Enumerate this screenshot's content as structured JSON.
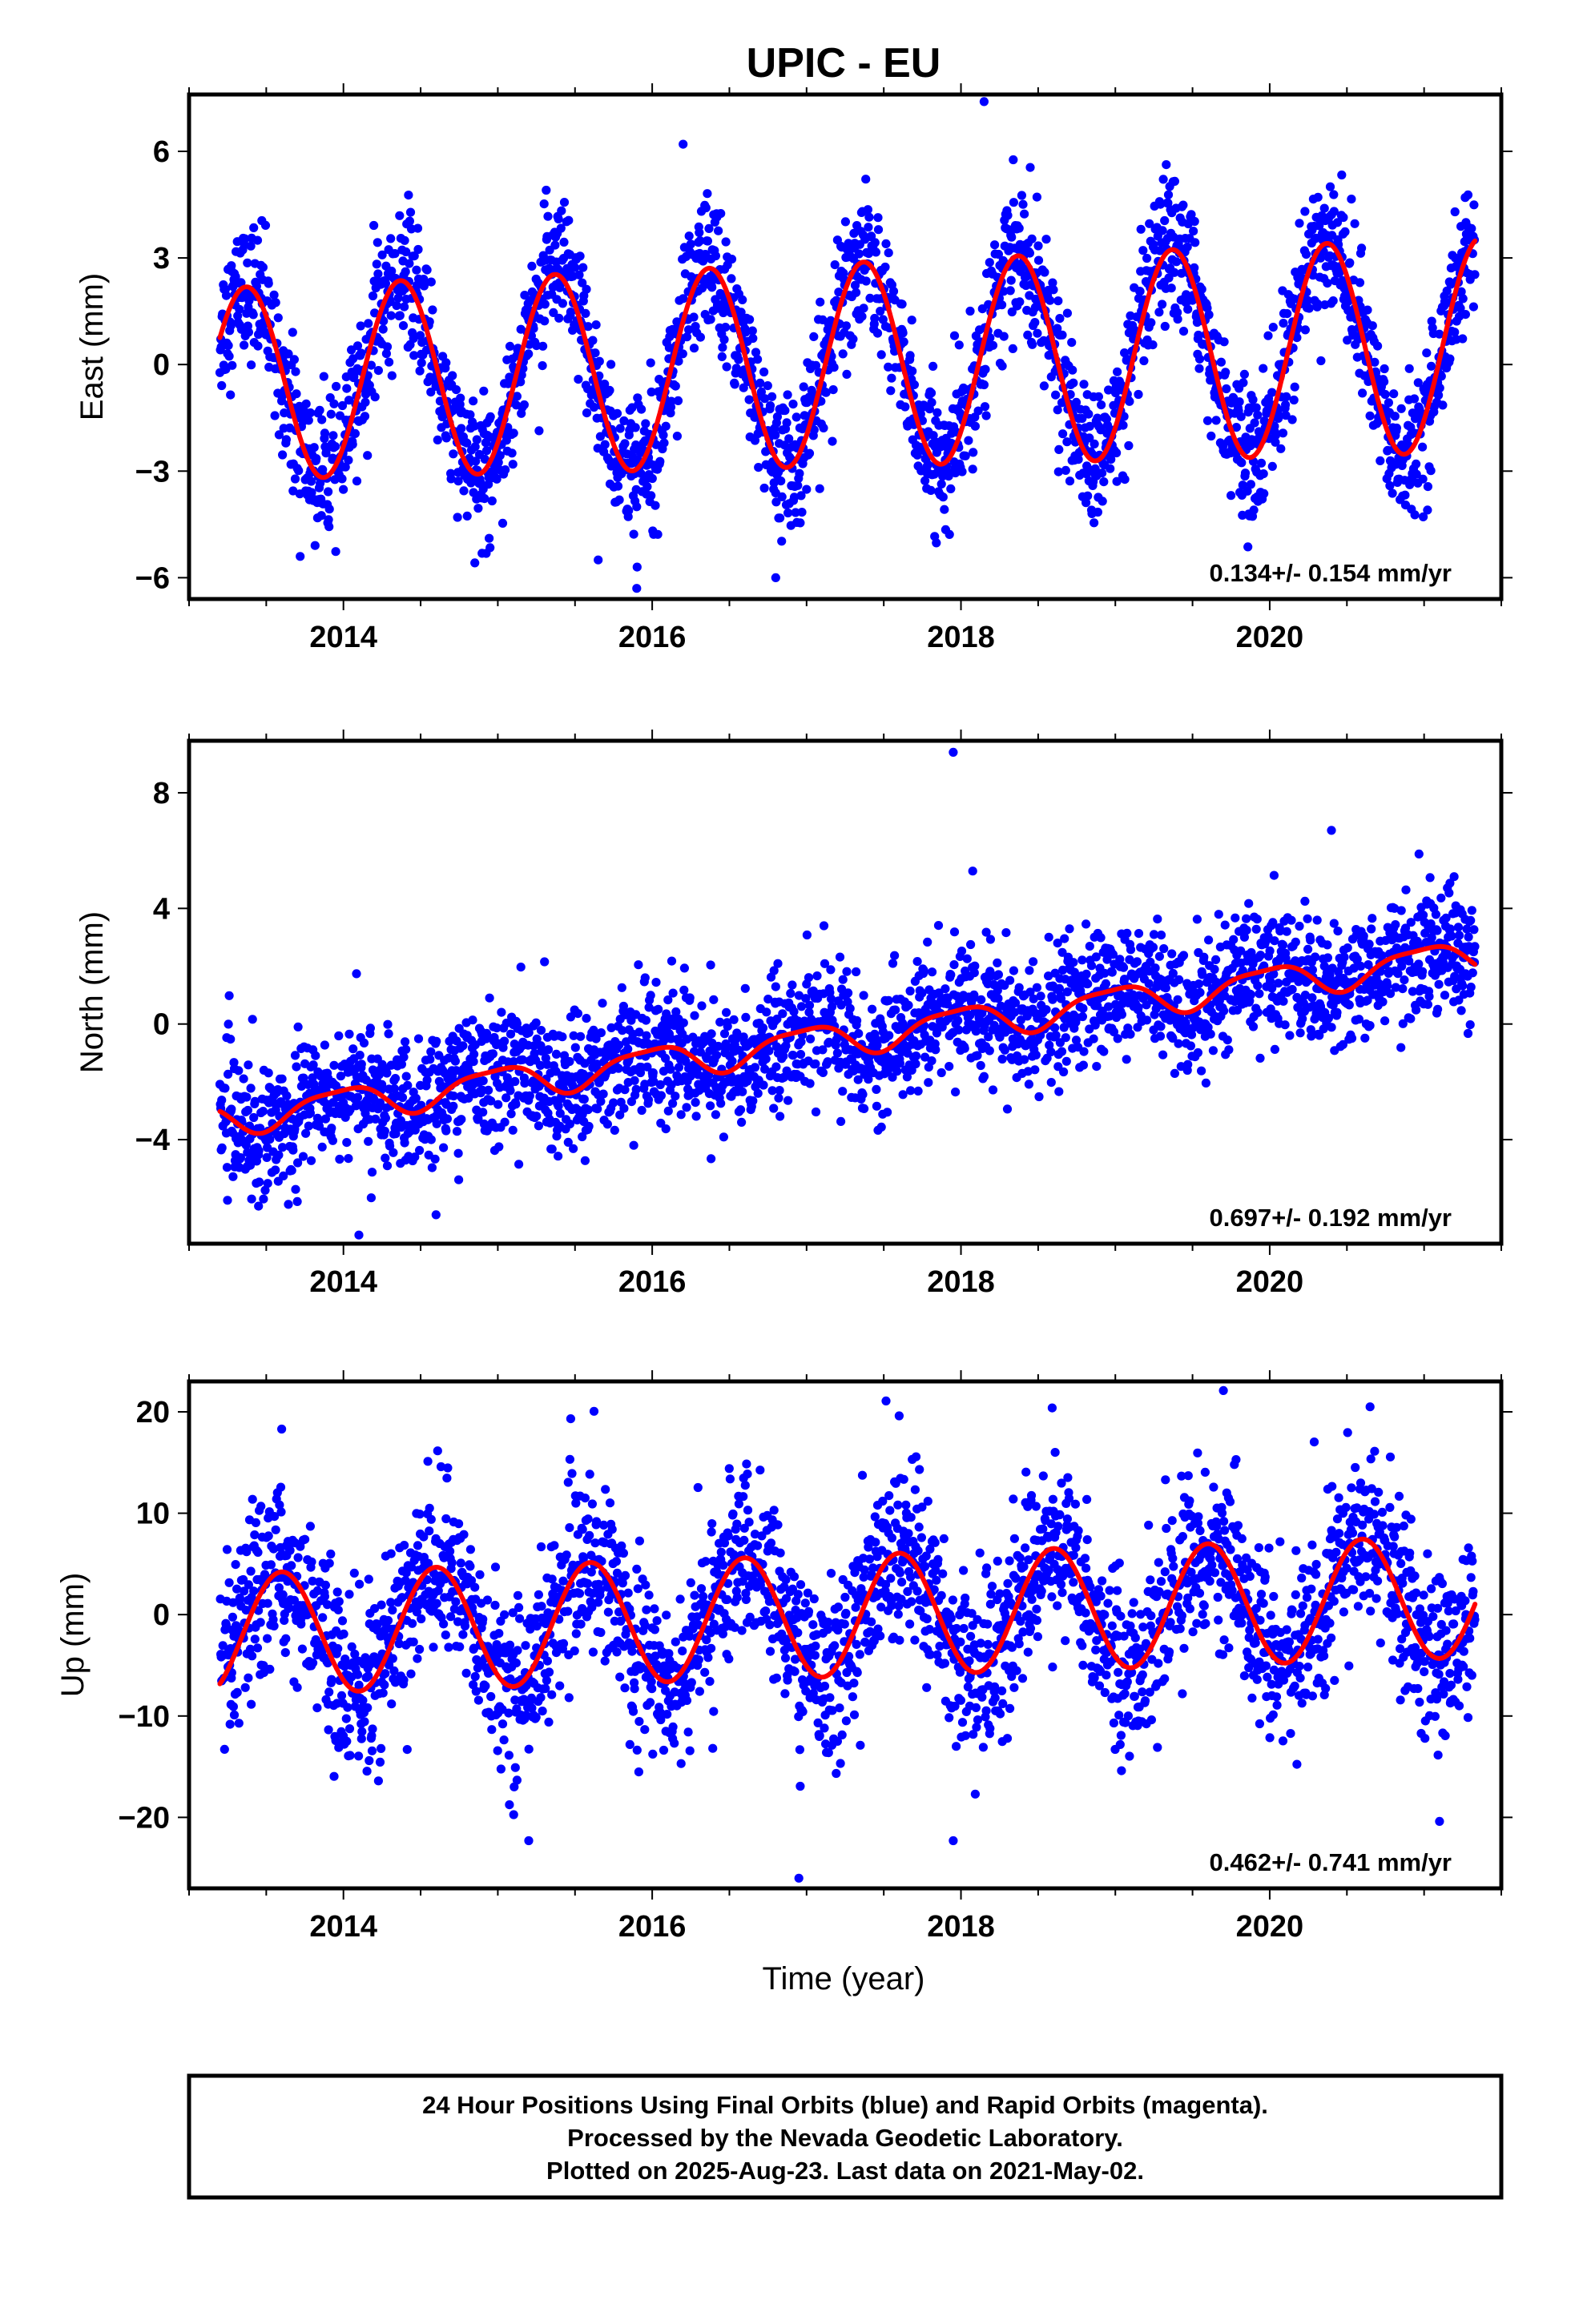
{
  "title": "UPIC - EU",
  "x_label": "Time (year)",
  "footer": {
    "lines": [
      "24 Hour Positions Using Final Orbits (blue) and Rapid Orbits (magenta).",
      "Processed by the Nevada Geodetic Laboratory.",
      "Plotted on 2025-Aug-23. Last data on 2021-May-02."
    ]
  },
  "colors": {
    "points": "#0000ff",
    "fit": "#ff0000",
    "frame": "#000000"
  },
  "chart_data": [
    {
      "type": "scatter",
      "component": "east",
      "ylabel": "East (mm)",
      "xlim": [
        2013.0,
        2021.5
      ],
      "ylim": [
        -6.6,
        7.6
      ],
      "xticks": [
        2014,
        2016,
        2018,
        2020
      ],
      "xtick_labels": [
        "2014",
        "2016",
        "2018",
        "2020"
      ],
      "yticks": [
        -6,
        -3,
        0,
        3,
        6
      ],
      "ytick_labels": [
        "−6",
        "−3",
        "0",
        "3",
        "6"
      ],
      "rate_text": "0.134+/- 0.154 mm/yr",
      "data_range": [
        2013.2,
        2021.33
      ],
      "fit_model": {
        "offset": 0.0,
        "rate": 0.134,
        "annual_amp": 2.7,
        "annual_peak": 0.37,
        "semiannual_amp": 0.0,
        "semiannual_peak": 0.0,
        "amp_growth": 0.12
      },
      "scatter_std": 0.95,
      "outliers": [
        [
          2013.72,
          -5.4
        ],
        [
          2015.65,
          -5.5
        ],
        [
          2015.9,
          -6.3
        ],
        [
          2016.2,
          6.2
        ],
        [
          2016.8,
          -6.0
        ],
        [
          2018.15,
          7.4
        ]
      ]
    },
    {
      "type": "scatter",
      "component": "north",
      "ylabel": "North (mm)",
      "xlim": [
        2013.0,
        2021.5
      ],
      "ylim": [
        -7.6,
        9.8
      ],
      "xticks": [
        2014,
        2016,
        2018,
        2020
      ],
      "xtick_labels": [
        "2014",
        "2016",
        "2018",
        "2020"
      ],
      "yticks": [
        -4,
        0,
        4,
        8
      ],
      "ytick_labels": [
        "−4",
        "0",
        "4",
        "8"
      ],
      "rate_text": "0.697+/- 0.192 mm/yr",
      "data_range": [
        2013.2,
        2021.33
      ],
      "fit_model": {
        "offset": -0.45,
        "rate": 0.697,
        "annual_amp": 0.55,
        "annual_peak": 0.98,
        "semiannual_amp": 0.15,
        "semiannual_peak": 0.2,
        "amp_growth": 0.0
      },
      "scatter_std": 1.1,
      "outliers": [
        [
          2013.45,
          -6.3
        ],
        [
          2014.1,
          -7.3
        ],
        [
          2014.6,
          -6.6
        ],
        [
          2017.95,
          9.4
        ],
        [
          2020.4,
          6.7
        ]
      ]
    },
    {
      "type": "scatter",
      "component": "up",
      "ylabel": "Up (mm)",
      "xlim": [
        2013.0,
        2021.5
      ],
      "ylim": [
        -27,
        23
      ],
      "xticks": [
        2014,
        2016,
        2018,
        2020
      ],
      "xtick_labels": [
        "2014",
        "2016",
        "2018",
        "2020"
      ],
      "yticks": [
        -20,
        -10,
        0,
        10,
        20
      ],
      "ytick_labels": [
        "−20",
        "−10",
        "0",
        "10",
        "20"
      ],
      "rate_text": "0.462+/- 0.741 mm/yr",
      "data_range": [
        2013.2,
        2021.33
      ],
      "fit_model": {
        "offset": -0.1,
        "rate": 0.462,
        "annual_amp": 6.0,
        "annual_peak": 0.6,
        "semiannual_amp": 0.0,
        "semiannual_peak": 0.0,
        "amp_growth": 0.0
      },
      "scatter_std": 4.2,
      "outliers": [
        [
          2013.6,
          18.3
        ],
        [
          2015.2,
          -22.3
        ],
        [
          2016.95,
          -26.0
        ],
        [
          2017.6,
          19.6
        ],
        [
          2017.95,
          -22.3
        ],
        [
          2019.7,
          22.1
        ],
        [
          2020.65,
          20.5
        ],
        [
          2021.1,
          -20.4
        ]
      ]
    }
  ]
}
